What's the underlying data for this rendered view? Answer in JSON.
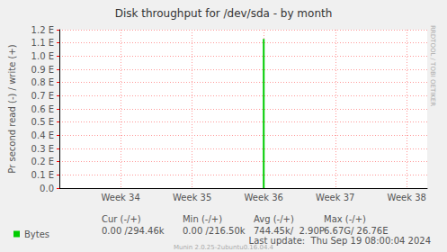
{
  "chart_data": {
    "type": "bar",
    "title": "Disk throughput for /dev/sda - by month",
    "y_label": "Pr second read (-) / write (+)",
    "categories": [
      null,
      null,
      null,
      null,
      null,
      null,
      "Week 34",
      null,
      null,
      null,
      null,
      null,
      null,
      "Week 35",
      null,
      null,
      null,
      null,
      null,
      null,
      "Week 36",
      null,
      null,
      null,
      null,
      null,
      null,
      "Week 37",
      null,
      null,
      null,
      null,
      null,
      null,
      "Week 38",
      null,
      null
    ],
    "series": [
      {
        "name": "Bytes",
        "color": "#00cc00",
        "values": [
          0,
          0,
          0,
          0,
          0,
          0,
          0,
          0,
          0,
          0,
          0,
          0,
          0,
          0,
          0,
          0,
          0,
          0,
          0,
          0,
          1.13e+18,
          0,
          0,
          0,
          0,
          0,
          0,
          0,
          0,
          0,
          0,
          0,
          0,
          0,
          0,
          0,
          0
        ]
      }
    ],
    "ylim": [
      0,
      1.2e+18
    ],
    "yticks": [
      {
        "value": 0,
        "label": "0.0"
      },
      {
        "value": 1e+17,
        "label": "0.1 E"
      },
      {
        "value": 2e+17,
        "label": "0.2 E"
      },
      {
        "value": 3e+17,
        "label": "0.3 E"
      },
      {
        "value": 4e+17,
        "label": "0.4 E"
      },
      {
        "value": 5e+17,
        "label": "0.5 E"
      },
      {
        "value": 6e+17,
        "label": "0.6 E"
      },
      {
        "value": 7e+17,
        "label": "0.7 E"
      },
      {
        "value": 8e+17,
        "label": "0.8 E"
      },
      {
        "value": 9e+17,
        "label": "0.9 E"
      },
      {
        "value": 1e+18,
        "label": "1.0 E"
      },
      {
        "value": 1.1e+18,
        "label": "1.1 E"
      },
      {
        "value": 1.2e+18,
        "label": "1.2 E"
      }
    ],
    "grid": true,
    "legend": "bottom",
    "stats_header": [
      "Cur (-/+)",
      "Min (-/+)",
      "Avg (-/+)",
      "Max (-/+)"
    ],
    "stats_values": [
      "0.00 /294.46k",
      "0.00 /216.50k",
      "744.45k/  2.90P",
      "6.67G/ 26.76E"
    ],
    "last_update": "Last update:  Thu Sep 19 08:00:04 2024",
    "footer": "Munin 2.0.25-2ubuntu0.16.04.4",
    "side_text": "RRDTOOL / TOBI OETIKER"
  }
}
